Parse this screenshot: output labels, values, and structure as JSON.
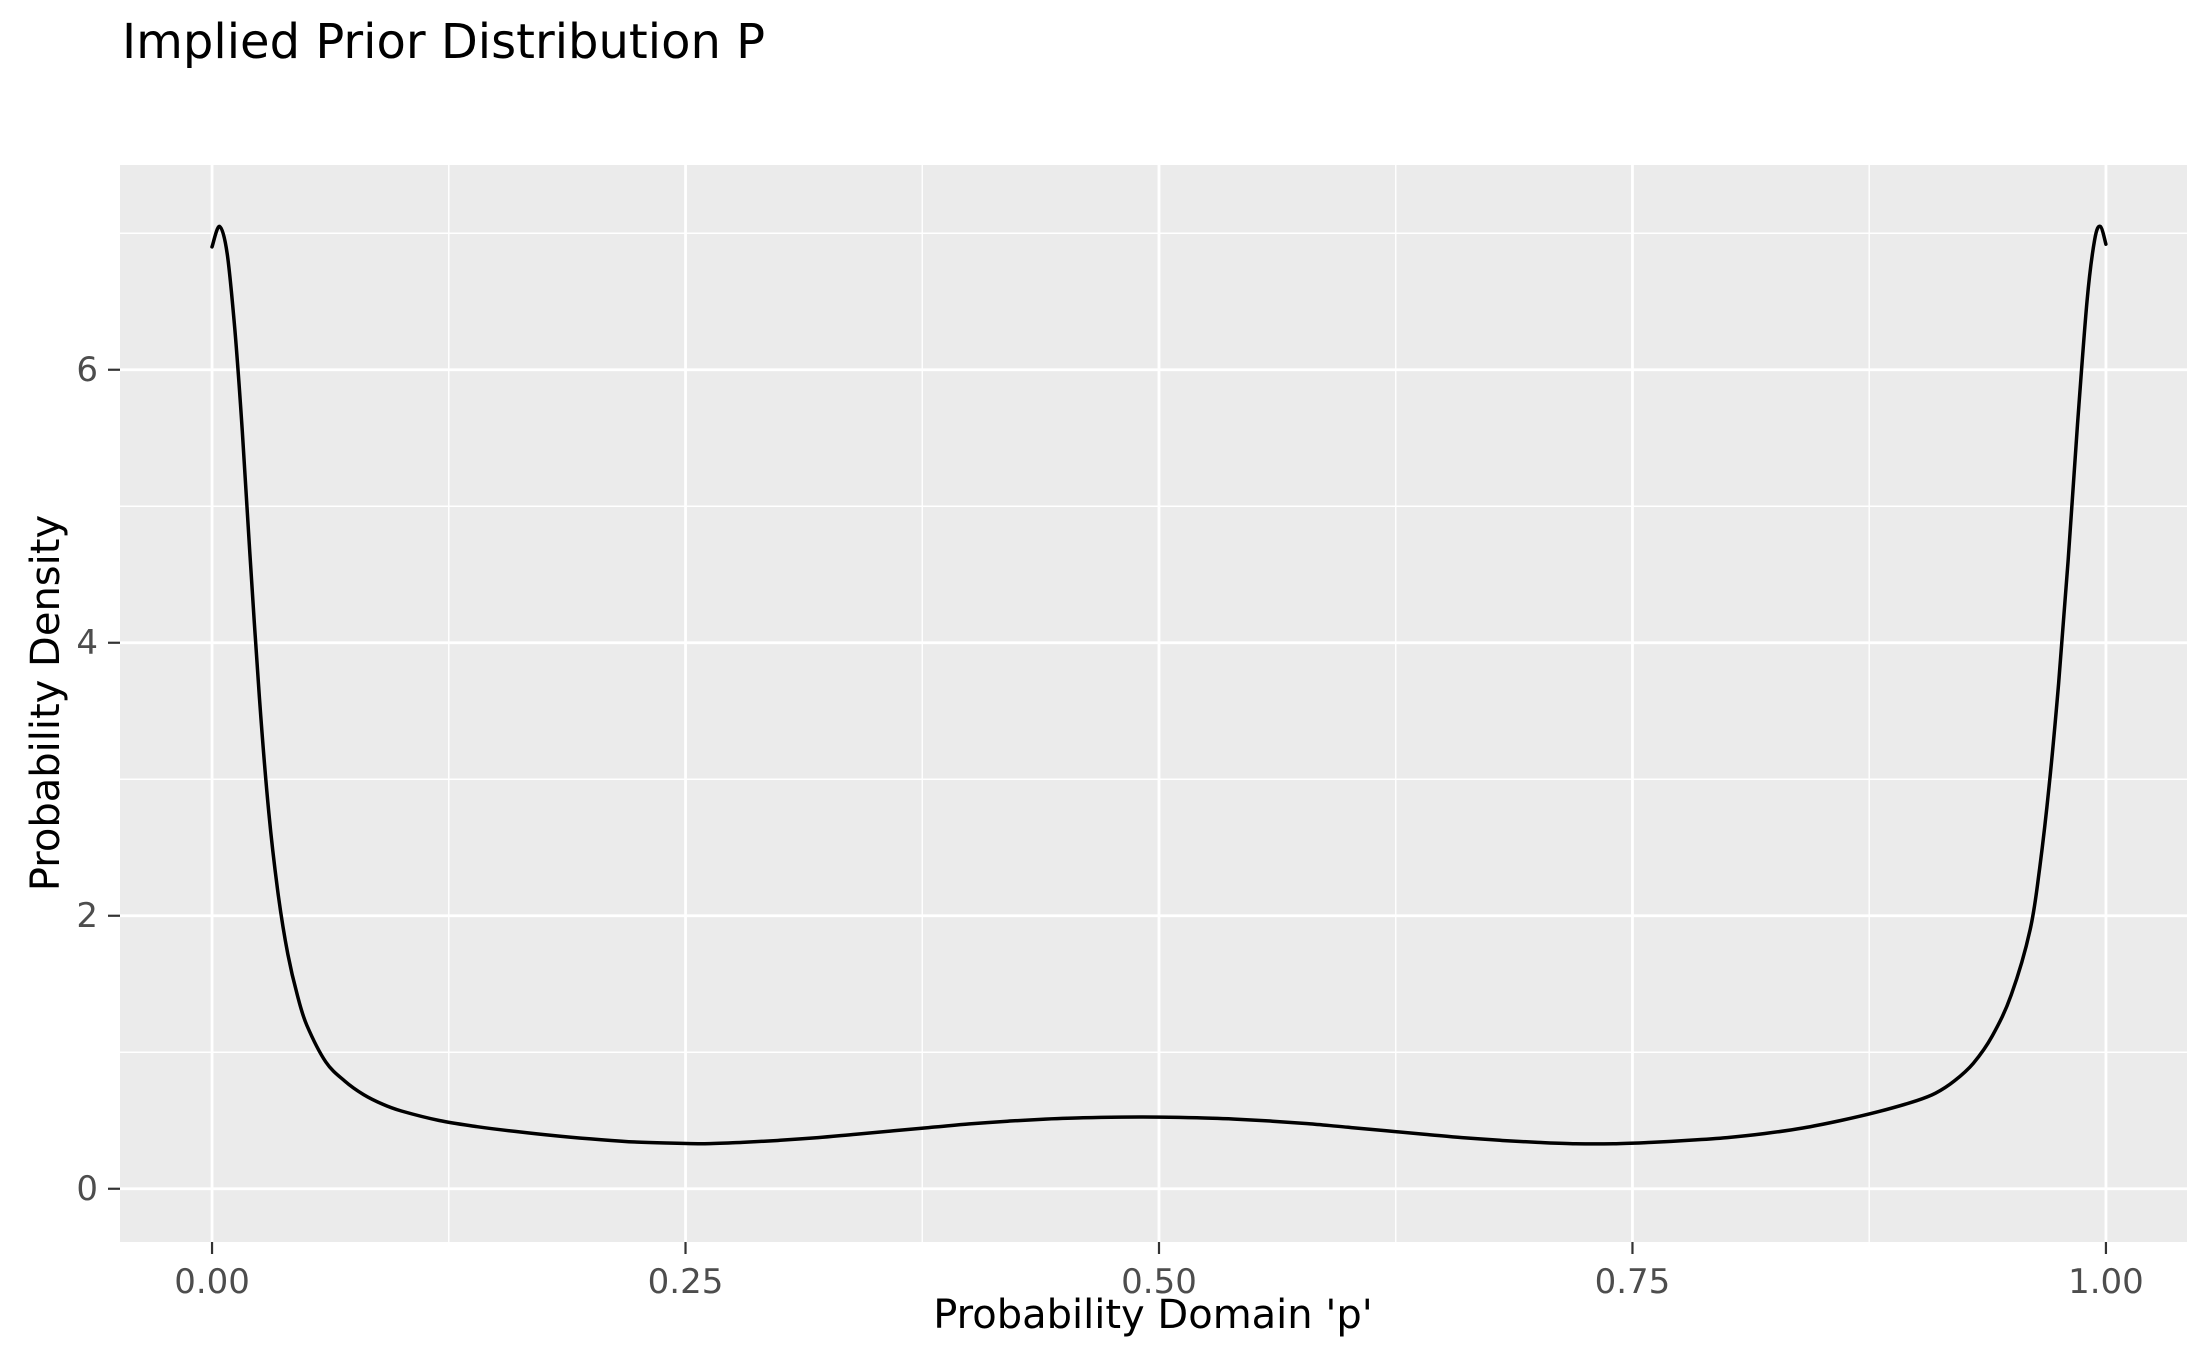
{
  "chart_data": {
    "type": "line",
    "title": "Implied Prior Distribution P",
    "xlabel": "Probability Domain 'p'",
    "ylabel": "Probability Density",
    "x_ticks": {
      "values": [
        0,
        0.25,
        0.5,
        0.75,
        1
      ],
      "labels": [
        "0.00",
        "0.25",
        "0.50",
        "0.75",
        "1.00"
      ]
    },
    "y_ticks": {
      "values": [
        0,
        2,
        4,
        6
      ],
      "labels": [
        "0",
        "2",
        "4",
        "6"
      ]
    },
    "x_minor": [
      0.125,
      0.375,
      0.625,
      0.875
    ],
    "y_minor": [
      1,
      3,
      5,
      7
    ],
    "xlim": [
      -0.0486,
      1.0428
    ],
    "ylim": [
      -0.39,
      7.5
    ],
    "grid": true,
    "legend": "none",
    "panel_background": "#EBEBEB",
    "grid_color": "#FFFFFF",
    "line_color": "#000000",
    "tick_text_color": "#4D4D4D",
    "tick_mark_color": "#333333",
    "series": [
      {
        "name": "implied-prior-density",
        "points": [
          [
            0.0,
            6.9
          ],
          [
            0.004,
            7.05
          ],
          [
            0.008,
            6.85
          ],
          [
            0.012,
            6.3
          ],
          [
            0.016,
            5.55
          ],
          [
            0.02,
            4.65
          ],
          [
            0.025,
            3.6
          ],
          [
            0.03,
            2.75
          ],
          [
            0.035,
            2.15
          ],
          [
            0.04,
            1.72
          ],
          [
            0.045,
            1.42
          ],
          [
            0.05,
            1.2
          ],
          [
            0.06,
            0.93
          ],
          [
            0.07,
            0.79
          ],
          [
            0.08,
            0.69
          ],
          [
            0.09,
            0.62
          ],
          [
            0.1,
            0.57
          ],
          [
            0.12,
            0.5
          ],
          [
            0.14,
            0.455
          ],
          [
            0.16,
            0.42
          ],
          [
            0.18,
            0.39
          ],
          [
            0.2,
            0.365
          ],
          [
            0.22,
            0.345
          ],
          [
            0.24,
            0.335
          ],
          [
            0.26,
            0.33
          ],
          [
            0.28,
            0.34
          ],
          [
            0.3,
            0.355
          ],
          [
            0.32,
            0.375
          ],
          [
            0.34,
            0.4
          ],
          [
            0.36,
            0.425
          ],
          [
            0.38,
            0.45
          ],
          [
            0.4,
            0.475
          ],
          [
            0.42,
            0.495
          ],
          [
            0.44,
            0.51
          ],
          [
            0.46,
            0.52
          ],
          [
            0.48,
            0.525
          ],
          [
            0.5,
            0.525
          ],
          [
            0.52,
            0.52
          ],
          [
            0.54,
            0.51
          ],
          [
            0.56,
            0.495
          ],
          [
            0.58,
            0.475
          ],
          [
            0.6,
            0.45
          ],
          [
            0.62,
            0.425
          ],
          [
            0.64,
            0.4
          ],
          [
            0.66,
            0.375
          ],
          [
            0.68,
            0.355
          ],
          [
            0.7,
            0.34
          ],
          [
            0.72,
            0.33
          ],
          [
            0.74,
            0.33
          ],
          [
            0.76,
            0.34
          ],
          [
            0.78,
            0.355
          ],
          [
            0.8,
            0.375
          ],
          [
            0.82,
            0.405
          ],
          [
            0.84,
            0.445
          ],
          [
            0.86,
            0.5
          ],
          [
            0.88,
            0.565
          ],
          [
            0.9,
            0.645
          ],
          [
            0.91,
            0.7
          ],
          [
            0.92,
            0.79
          ],
          [
            0.93,
            0.92
          ],
          [
            0.94,
            1.12
          ],
          [
            0.95,
            1.42
          ],
          [
            0.96,
            1.9
          ],
          [
            0.965,
            2.35
          ],
          [
            0.97,
            2.95
          ],
          [
            0.975,
            3.7
          ],
          [
            0.98,
            4.6
          ],
          [
            0.985,
            5.6
          ],
          [
            0.99,
            6.5
          ],
          [
            0.994,
            6.95
          ],
          [
            0.997,
            7.05
          ],
          [
            1.0,
            6.92
          ]
        ]
      }
    ]
  }
}
